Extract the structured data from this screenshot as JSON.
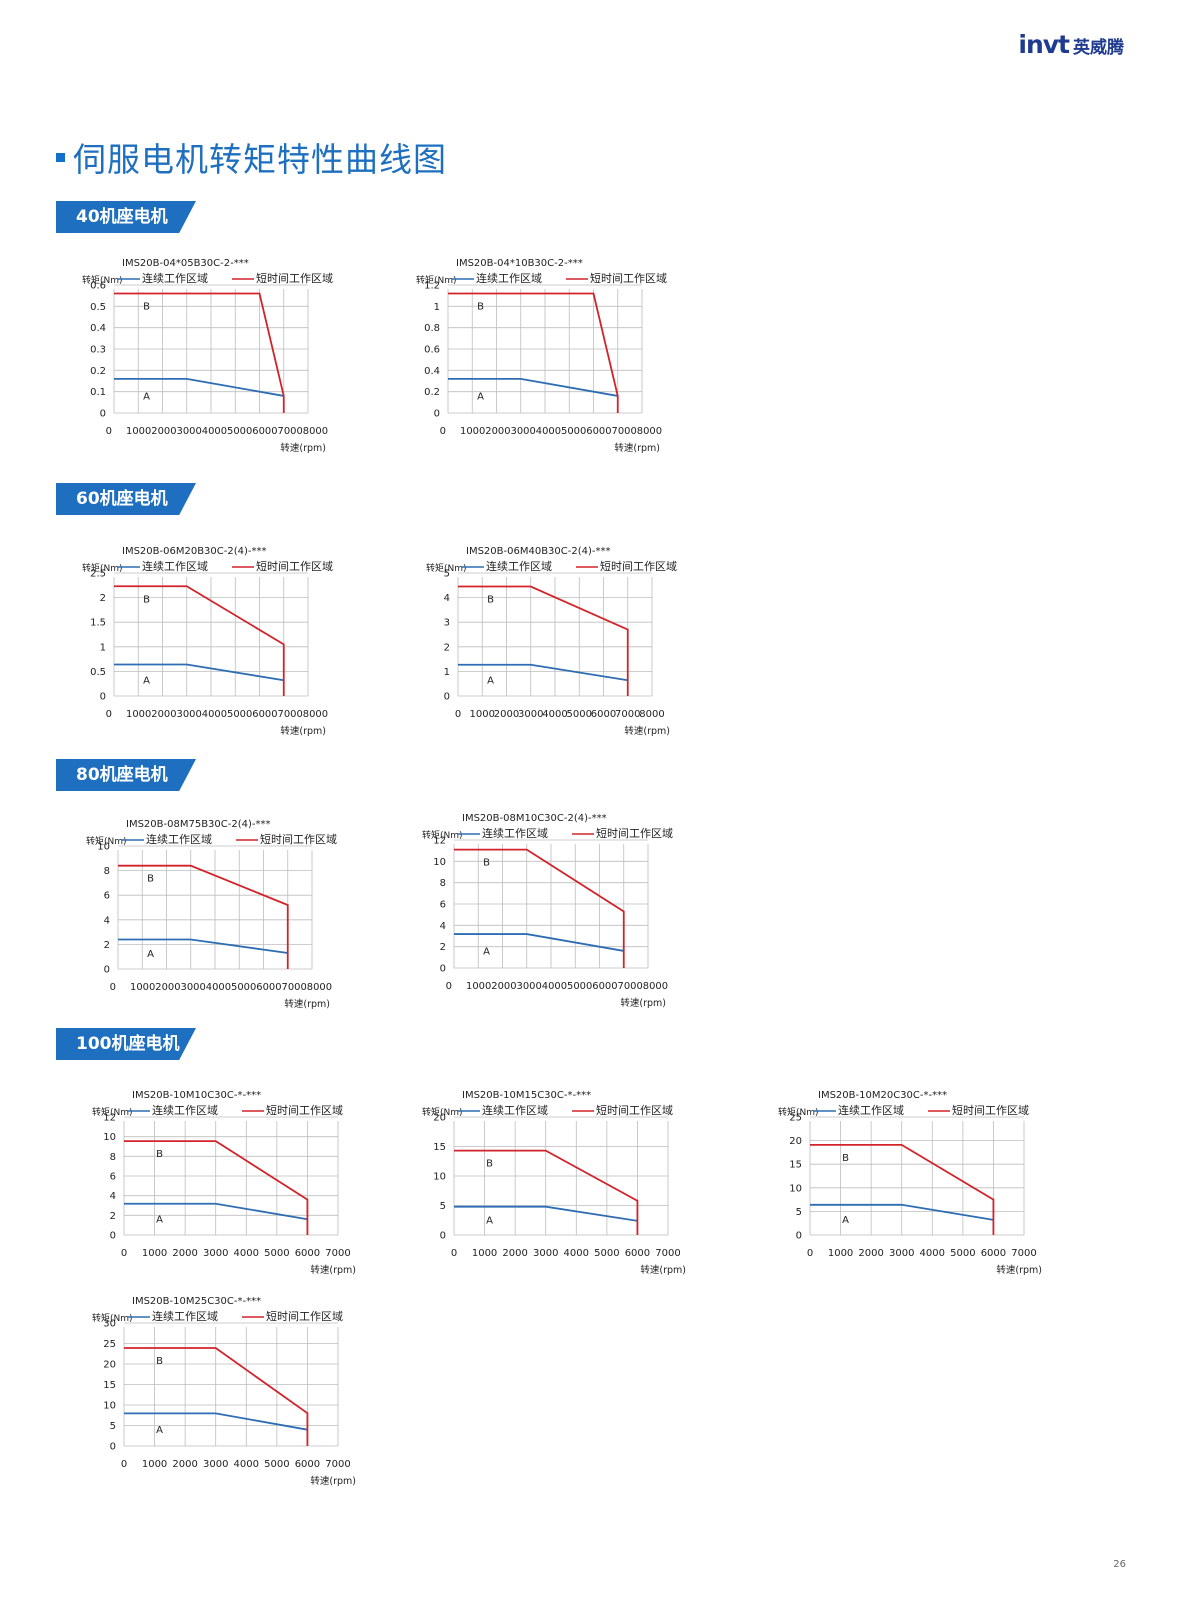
{
  "brand": {
    "logo": "invt",
    "name_cn": "英威腾"
  },
  "page_title": "伺服电机转矩特性曲线图",
  "page_number": "26",
  "colors": {
    "continuous": "#2e6db4",
    "short_time": "#d2232a",
    "accent": "#1e6fbf"
  },
  "sections": [
    {
      "label": "40机座电机"
    },
    {
      "label": "60机座电机"
    },
    {
      "label": "80机座电机"
    },
    {
      "label": "100机座电机"
    }
  ],
  "chart_data": [
    {
      "type": "line",
      "title": "IMS20B-04*05B30C-2-***",
      "ylabel": "转矩(Nm)",
      "xlabel": "转速(rpm)",
      "xlim": [
        0,
        8000
      ],
      "ylim": [
        0,
        0.6
      ],
      "yticks": [
        "0",
        "0.1",
        "0.2",
        "0.3",
        "0.4",
        "0.5",
        "0.6"
      ],
      "xticks": [
        "0",
        "1000",
        "2000",
        "3000",
        "4000",
        "5000",
        "6000",
        "7000",
        "8000"
      ],
      "xtick_style": "compact",
      "legend": [
        "连续工作区域",
        "短时间工作区域"
      ],
      "region_labels": [
        "A",
        "B"
      ],
      "grid": true,
      "series": [
        {
          "name": "连续工作区域",
          "x": [
            0,
            3000,
            7000
          ],
          "y": [
            0.16,
            0.16,
            0.08
          ]
        },
        {
          "name": "短时间工作区域",
          "x": [
            0,
            6000,
            7000,
            7000
          ],
          "y": [
            0.56,
            0.56,
            0.08,
            0
          ]
        }
      ]
    },
    {
      "type": "line",
      "title": "IMS20B-04*10B30C-2-***",
      "ylabel": "转矩(Nm)",
      "xlabel": "转速(rpm)",
      "xlim": [
        0,
        8000
      ],
      "ylim": [
        0,
        1.2
      ],
      "yticks": [
        "0",
        "0.2",
        "0.4",
        "0.6",
        "0.8",
        "1",
        "1.2"
      ],
      "xticks": [
        "0",
        "1000",
        "2000",
        "3000",
        "4000",
        "5000",
        "6000",
        "7000",
        "8000"
      ],
      "xtick_style": "compact",
      "legend": [
        "连续工作区域",
        "短时间工作区域"
      ],
      "region_labels": [
        "A",
        "B"
      ],
      "grid": true,
      "series": [
        {
          "name": "连续工作区域",
          "x": [
            0,
            3000,
            7000
          ],
          "y": [
            0.32,
            0.32,
            0.16
          ]
        },
        {
          "name": "短时间工作区域",
          "x": [
            0,
            6000,
            7000,
            7000
          ],
          "y": [
            1.12,
            1.12,
            0.16,
            0
          ]
        }
      ]
    },
    {
      "type": "line",
      "title": "IMS20B-06M20B30C-2(4)-***",
      "ylabel": "转矩(Nm)",
      "xlabel": "转速(rpm)",
      "xlim": [
        0,
        8000
      ],
      "ylim": [
        0,
        2.5
      ],
      "yticks": [
        "0",
        "0.5",
        "1",
        "1.5",
        "2",
        "2.5"
      ],
      "xticks": [
        "0",
        "1000",
        "2000",
        "3000",
        "4000",
        "5000",
        "6000",
        "7000",
        "8000"
      ],
      "xtick_style": "compact",
      "legend": [
        "连续工作区域",
        "短时间工作区域"
      ],
      "region_labels": [
        "A",
        "B"
      ],
      "grid": true,
      "series": [
        {
          "name": "连续工作区域",
          "x": [
            0,
            3000,
            7000
          ],
          "y": [
            0.64,
            0.64,
            0.32
          ]
        },
        {
          "name": "短时间工作区域",
          "x": [
            0,
            3000,
            7000,
            7000
          ],
          "y": [
            2.23,
            2.23,
            1.05,
            0
          ]
        }
      ]
    },
    {
      "type": "line",
      "title": "IMS20B-06M40B30C-2(4)-***",
      "ylabel": "转矩(Nm)",
      "xlabel": "转速(rpm)",
      "xlim": [
        0,
        8000
      ],
      "ylim": [
        0,
        5
      ],
      "yticks": [
        "0",
        "1",
        "2",
        "3",
        "4",
        "5"
      ],
      "xticks": [
        "0",
        "1000",
        "2000",
        "3000",
        "4000",
        "5000",
        "6000",
        "7000",
        "8000"
      ],
      "xtick_style": "spaced",
      "legend": [
        "连续工作区域",
        "短时间工作区域"
      ],
      "region_labels": [
        "A",
        "B"
      ],
      "grid": true,
      "series": [
        {
          "name": "连续工作区域",
          "x": [
            0,
            3000,
            7000
          ],
          "y": [
            1.27,
            1.27,
            0.64
          ]
        },
        {
          "name": "短时间工作区域",
          "x": [
            0,
            3000,
            7000,
            7000
          ],
          "y": [
            4.45,
            4.45,
            2.7,
            0
          ]
        }
      ]
    },
    {
      "type": "line",
      "title": "IMS20B-08M75B30C-2(4)-***",
      "ylabel": "转矩(Nm)",
      "xlabel": "转速(rpm)",
      "xlim": [
        0,
        8000
      ],
      "ylim": [
        0,
        10
      ],
      "yticks": [
        "0",
        "2",
        "4",
        "6",
        "8",
        "10"
      ],
      "xticks": [
        "0",
        "1000",
        "2000",
        "3000",
        "4000",
        "5000",
        "6000",
        "7000",
        "8000"
      ],
      "xtick_style": "compact",
      "legend": [
        "连续工作区域",
        "短时间工作区域"
      ],
      "region_labels": [
        "A",
        "B"
      ],
      "grid": true,
      "series": [
        {
          "name": "连续工作区域",
          "x": [
            0,
            3000,
            7000
          ],
          "y": [
            2.4,
            2.4,
            1.3
          ]
        },
        {
          "name": "短时间工作区域",
          "x": [
            0,
            3000,
            7000,
            7000
          ],
          "y": [
            8.4,
            8.4,
            5.2,
            0
          ]
        }
      ]
    },
    {
      "type": "line",
      "title": "IMS20B-08M10C30C-2(4)-***",
      "ylabel": "转矩(Nm)",
      "xlabel": "转速(rpm)",
      "xlim": [
        0,
        8000
      ],
      "ylim": [
        0,
        12
      ],
      "yticks": [
        "0",
        "2",
        "4",
        "6",
        "8",
        "10",
        "12"
      ],
      "xticks": [
        "0",
        "1000",
        "2000",
        "3000",
        "4000",
        "5000",
        "6000",
        "7000",
        "8000"
      ],
      "xtick_style": "compact",
      "legend": [
        "连续工作区域",
        "短时间工作区域"
      ],
      "region_labels": [
        "A",
        "B"
      ],
      "grid": true,
      "series": [
        {
          "name": "连续工作区域",
          "x": [
            0,
            3000,
            7000
          ],
          "y": [
            3.18,
            3.18,
            1.6
          ]
        },
        {
          "name": "短时间工作区域",
          "x": [
            0,
            3000,
            7000,
            7000
          ],
          "y": [
            11.1,
            11.1,
            5.3,
            0
          ]
        }
      ]
    },
    {
      "type": "line",
      "title": "IMS20B-10M10C30C-*-***",
      "ylabel": "转矩(Nm)",
      "xlabel": "转速(rpm)",
      "xlim": [
        0,
        7000
      ],
      "ylim": [
        0,
        12
      ],
      "yticks": [
        "0",
        "2",
        "4",
        "6",
        "8",
        "10",
        "12"
      ],
      "xticks": [
        "0",
        "1000",
        "2000",
        "3000",
        "4000",
        "5000",
        "6000",
        "7000"
      ],
      "xtick_style": "spaced",
      "legend": [
        "连续工作区域",
        "短时间工作区域"
      ],
      "region_labels": [
        "A",
        "B"
      ],
      "grid": true,
      "series": [
        {
          "name": "连续工作区域",
          "x": [
            0,
            3000,
            6000
          ],
          "y": [
            3.18,
            3.18,
            1.6
          ]
        },
        {
          "name": "短时间工作区域",
          "x": [
            0,
            3000,
            6000,
            6000
          ],
          "y": [
            9.55,
            9.55,
            3.6,
            0
          ]
        }
      ]
    },
    {
      "type": "line",
      "title": "IMS20B-10M15C30C-*-***",
      "ylabel": "转矩(Nm)",
      "xlabel": "转速(rpm)",
      "xlim": [
        0,
        7000
      ],
      "ylim": [
        0,
        20
      ],
      "yticks": [
        "0",
        "5",
        "10",
        "15",
        "20"
      ],
      "xticks": [
        "0",
        "1000",
        "2000",
        "3000",
        "4000",
        "5000",
        "6000",
        "7000"
      ],
      "xtick_style": "spaced",
      "legend": [
        "连续工作区域",
        "短时间工作区域"
      ],
      "region_labels": [
        "A",
        "B"
      ],
      "grid": true,
      "series": [
        {
          "name": "连续工作区域",
          "x": [
            0,
            3000,
            6000
          ],
          "y": [
            4.8,
            4.8,
            2.4
          ]
        },
        {
          "name": "短时间工作区域",
          "x": [
            0,
            3000,
            6000,
            6000
          ],
          "y": [
            14.3,
            14.3,
            5.8,
            0
          ]
        }
      ]
    },
    {
      "type": "line",
      "title": "IMS20B-10M20C30C-*-***",
      "ylabel": "转矩(Nm)",
      "xlabel": "转速(rpm)",
      "xlim": [
        0,
        7000
      ],
      "ylim": [
        0,
        25
      ],
      "yticks": [
        "0",
        "5",
        "10",
        "15",
        "20",
        "25"
      ],
      "xticks": [
        "0",
        "1000",
        "2000",
        "3000",
        "4000",
        "5000",
        "6000",
        "7000"
      ],
      "xtick_style": "spaced",
      "legend": [
        "连续工作区域",
        "短时间工作区域"
      ],
      "region_labels": [
        "A",
        "B"
      ],
      "grid": true,
      "series": [
        {
          "name": "连续工作区域",
          "x": [
            0,
            3000,
            6000
          ],
          "y": [
            6.4,
            6.4,
            3.2
          ]
        },
        {
          "name": "短时间工作区域",
          "x": [
            0,
            3000,
            6000,
            6000
          ],
          "y": [
            19.1,
            19.1,
            7.5,
            0
          ]
        }
      ]
    },
    {
      "type": "line",
      "title": "IMS20B-10M25C30C-*-***",
      "ylabel": "转矩(Nm)",
      "xlabel": "转速(rpm)",
      "xlim": [
        0,
        7000
      ],
      "ylim": [
        0,
        30
      ],
      "yticks": [
        "0",
        "5",
        "10",
        "15",
        "20",
        "25",
        "30"
      ],
      "xticks": [
        "0",
        "1000",
        "2000",
        "3000",
        "4000",
        "5000",
        "6000",
        "7000"
      ],
      "xtick_style": "spaced",
      "legend": [
        "连续工作区域",
        "短时间工作区域"
      ],
      "region_labels": [
        "A",
        "B"
      ],
      "grid": true,
      "series": [
        {
          "name": "连续工作区域",
          "x": [
            0,
            3000,
            6000
          ],
          "y": [
            7.96,
            7.96,
            3.98
          ]
        },
        {
          "name": "短时间工作区域",
          "x": [
            0,
            3000,
            6000,
            6000
          ],
          "y": [
            23.9,
            23.9,
            8.0,
            0
          ]
        }
      ]
    }
  ]
}
